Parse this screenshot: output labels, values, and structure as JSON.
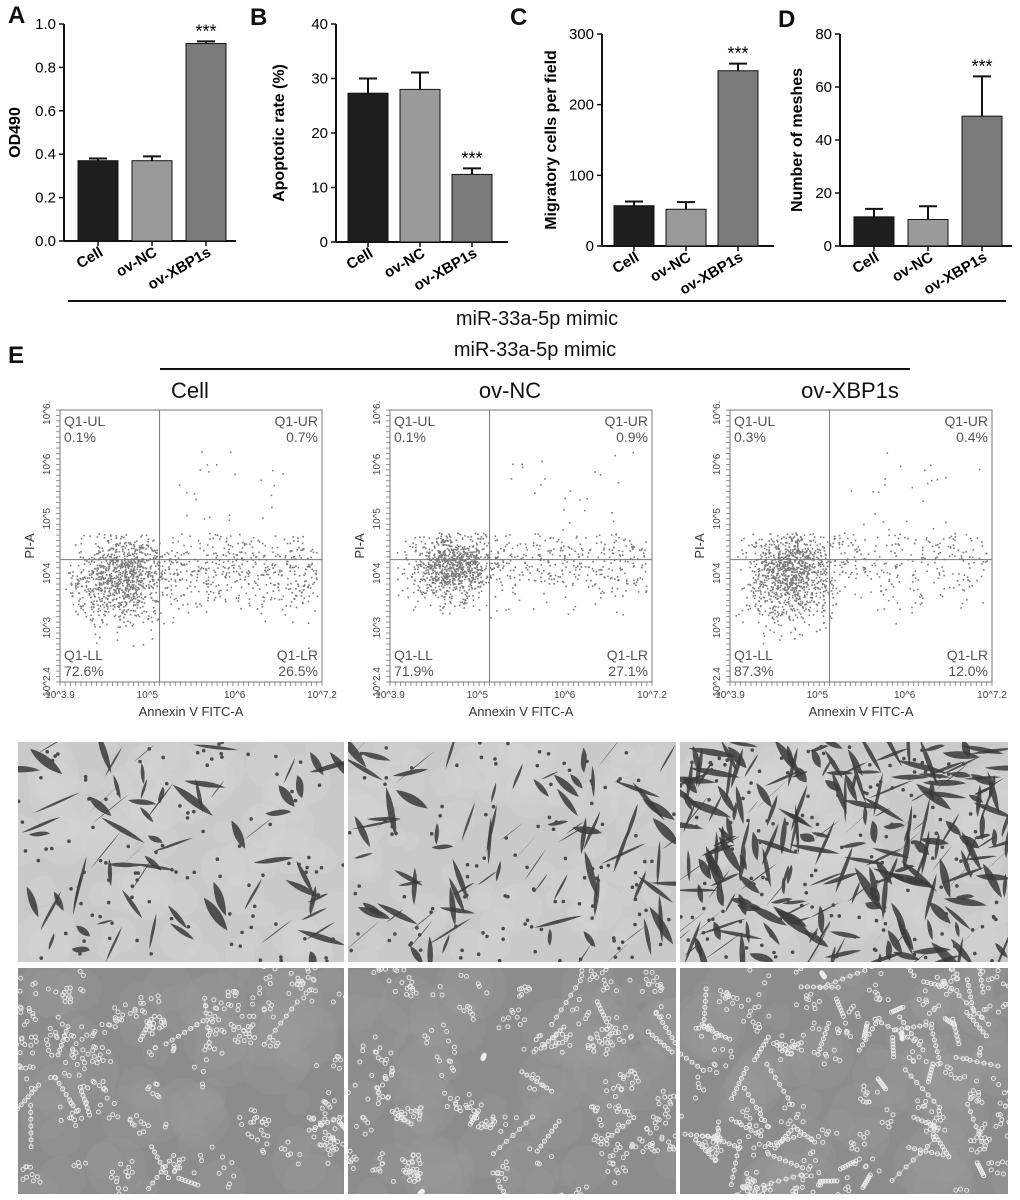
{
  "colors": {
    "cell": "#1e1e1e",
    "ov_nc": "#9a9a9a",
    "ov_xbp1s": "#7a7a7a",
    "flow_dot": "#7a7a7a"
  },
  "labels": {
    "mimic": "miR-33a-5p mimic",
    "mimic_e": "miR-33a-5p mimic",
    "col_cell": "Cell",
    "col_ovnc": "ov-NC",
    "col_ovxbp1s": "ov-XBP1s"
  },
  "chart_data": [
    {
      "panel": "A",
      "type": "bar",
      "categories": [
        "Cell",
        "ov-NC",
        "ov-XBP1s"
      ],
      "values": [
        0.37,
        0.37,
        0.91
      ],
      "errors": [
        0.01,
        0.02,
        0.01
      ],
      "ylabel": "OD490",
      "ylim": [
        0,
        1.0
      ],
      "yticks": [
        "0.0",
        "0.2",
        "0.4",
        "0.6",
        "0.8",
        "1.0"
      ],
      "significance": [
        "",
        "",
        "***"
      ]
    },
    {
      "panel": "B",
      "type": "bar",
      "categories": [
        "Cell",
        "ov-NC",
        "ov-XBP1s"
      ],
      "values": [
        27.3,
        28.0,
        12.4
      ],
      "errors": [
        2.7,
        3.1,
        1.1
      ],
      "ylabel": "Apoptotic rate (%)",
      "ylim": [
        0,
        40
      ],
      "yticks": [
        "0",
        "10",
        "20",
        "30",
        "40"
      ],
      "significance": [
        "",
        "",
        "***"
      ]
    },
    {
      "panel": "C",
      "type": "bar",
      "categories": [
        "Cell",
        "ov-NC",
        "ov-XBP1s"
      ],
      "values": [
        57,
        52,
        248
      ],
      "errors": [
        6,
        10,
        10
      ],
      "ylabel": "Migratory cells per field",
      "ylim": [
        0,
        300
      ],
      "yticks": [
        "0",
        "100",
        "200",
        "300"
      ],
      "significance": [
        "",
        "",
        "***"
      ]
    },
    {
      "panel": "D",
      "type": "bar",
      "categories": [
        "Cell",
        "ov-NC",
        "ov-XBP1s"
      ],
      "values": [
        11,
        10,
        49
      ],
      "errors": [
        3,
        5,
        15
      ],
      "ylabel": "Number of meshes",
      "ylim": [
        0,
        80
      ],
      "yticks": [
        "0",
        "20",
        "40",
        "60",
        "80"
      ],
      "significance": [
        "",
        "",
        "***"
      ]
    },
    {
      "panel": "E",
      "type": "scatter",
      "xlabel": "Annexin V FITC-A",
      "ylabel": "PI-A",
      "xticks": [
        "10^3.9",
        "10^5",
        "10^6",
        "10^7.2"
      ],
      "yticks": [
        "10^2.4",
        "10^3",
        "10^4",
        "10^5",
        "10^6",
        "10^6.9"
      ],
      "plots": [
        {
          "group": "Cell",
          "UL": "0.1%",
          "UR": "0.7%",
          "LL": "72.6%",
          "LR": "26.5%"
        },
        {
          "group": "ov-NC",
          "UL": "0.1%",
          "UR": "0.9%",
          "LL": "71.9%",
          "LR": "27.1%"
        },
        {
          "group": "ov-XBP1s",
          "UL": "0.3%",
          "UR": "0.4%",
          "LL": "87.3%",
          "LR": "12.0%"
        }
      ],
      "quadrant_labels": {
        "UL": "Q1-UL",
        "UR": "Q1-UR",
        "LL": "Q1-LL",
        "LR": "Q1-LR"
      }
    }
  ]
}
